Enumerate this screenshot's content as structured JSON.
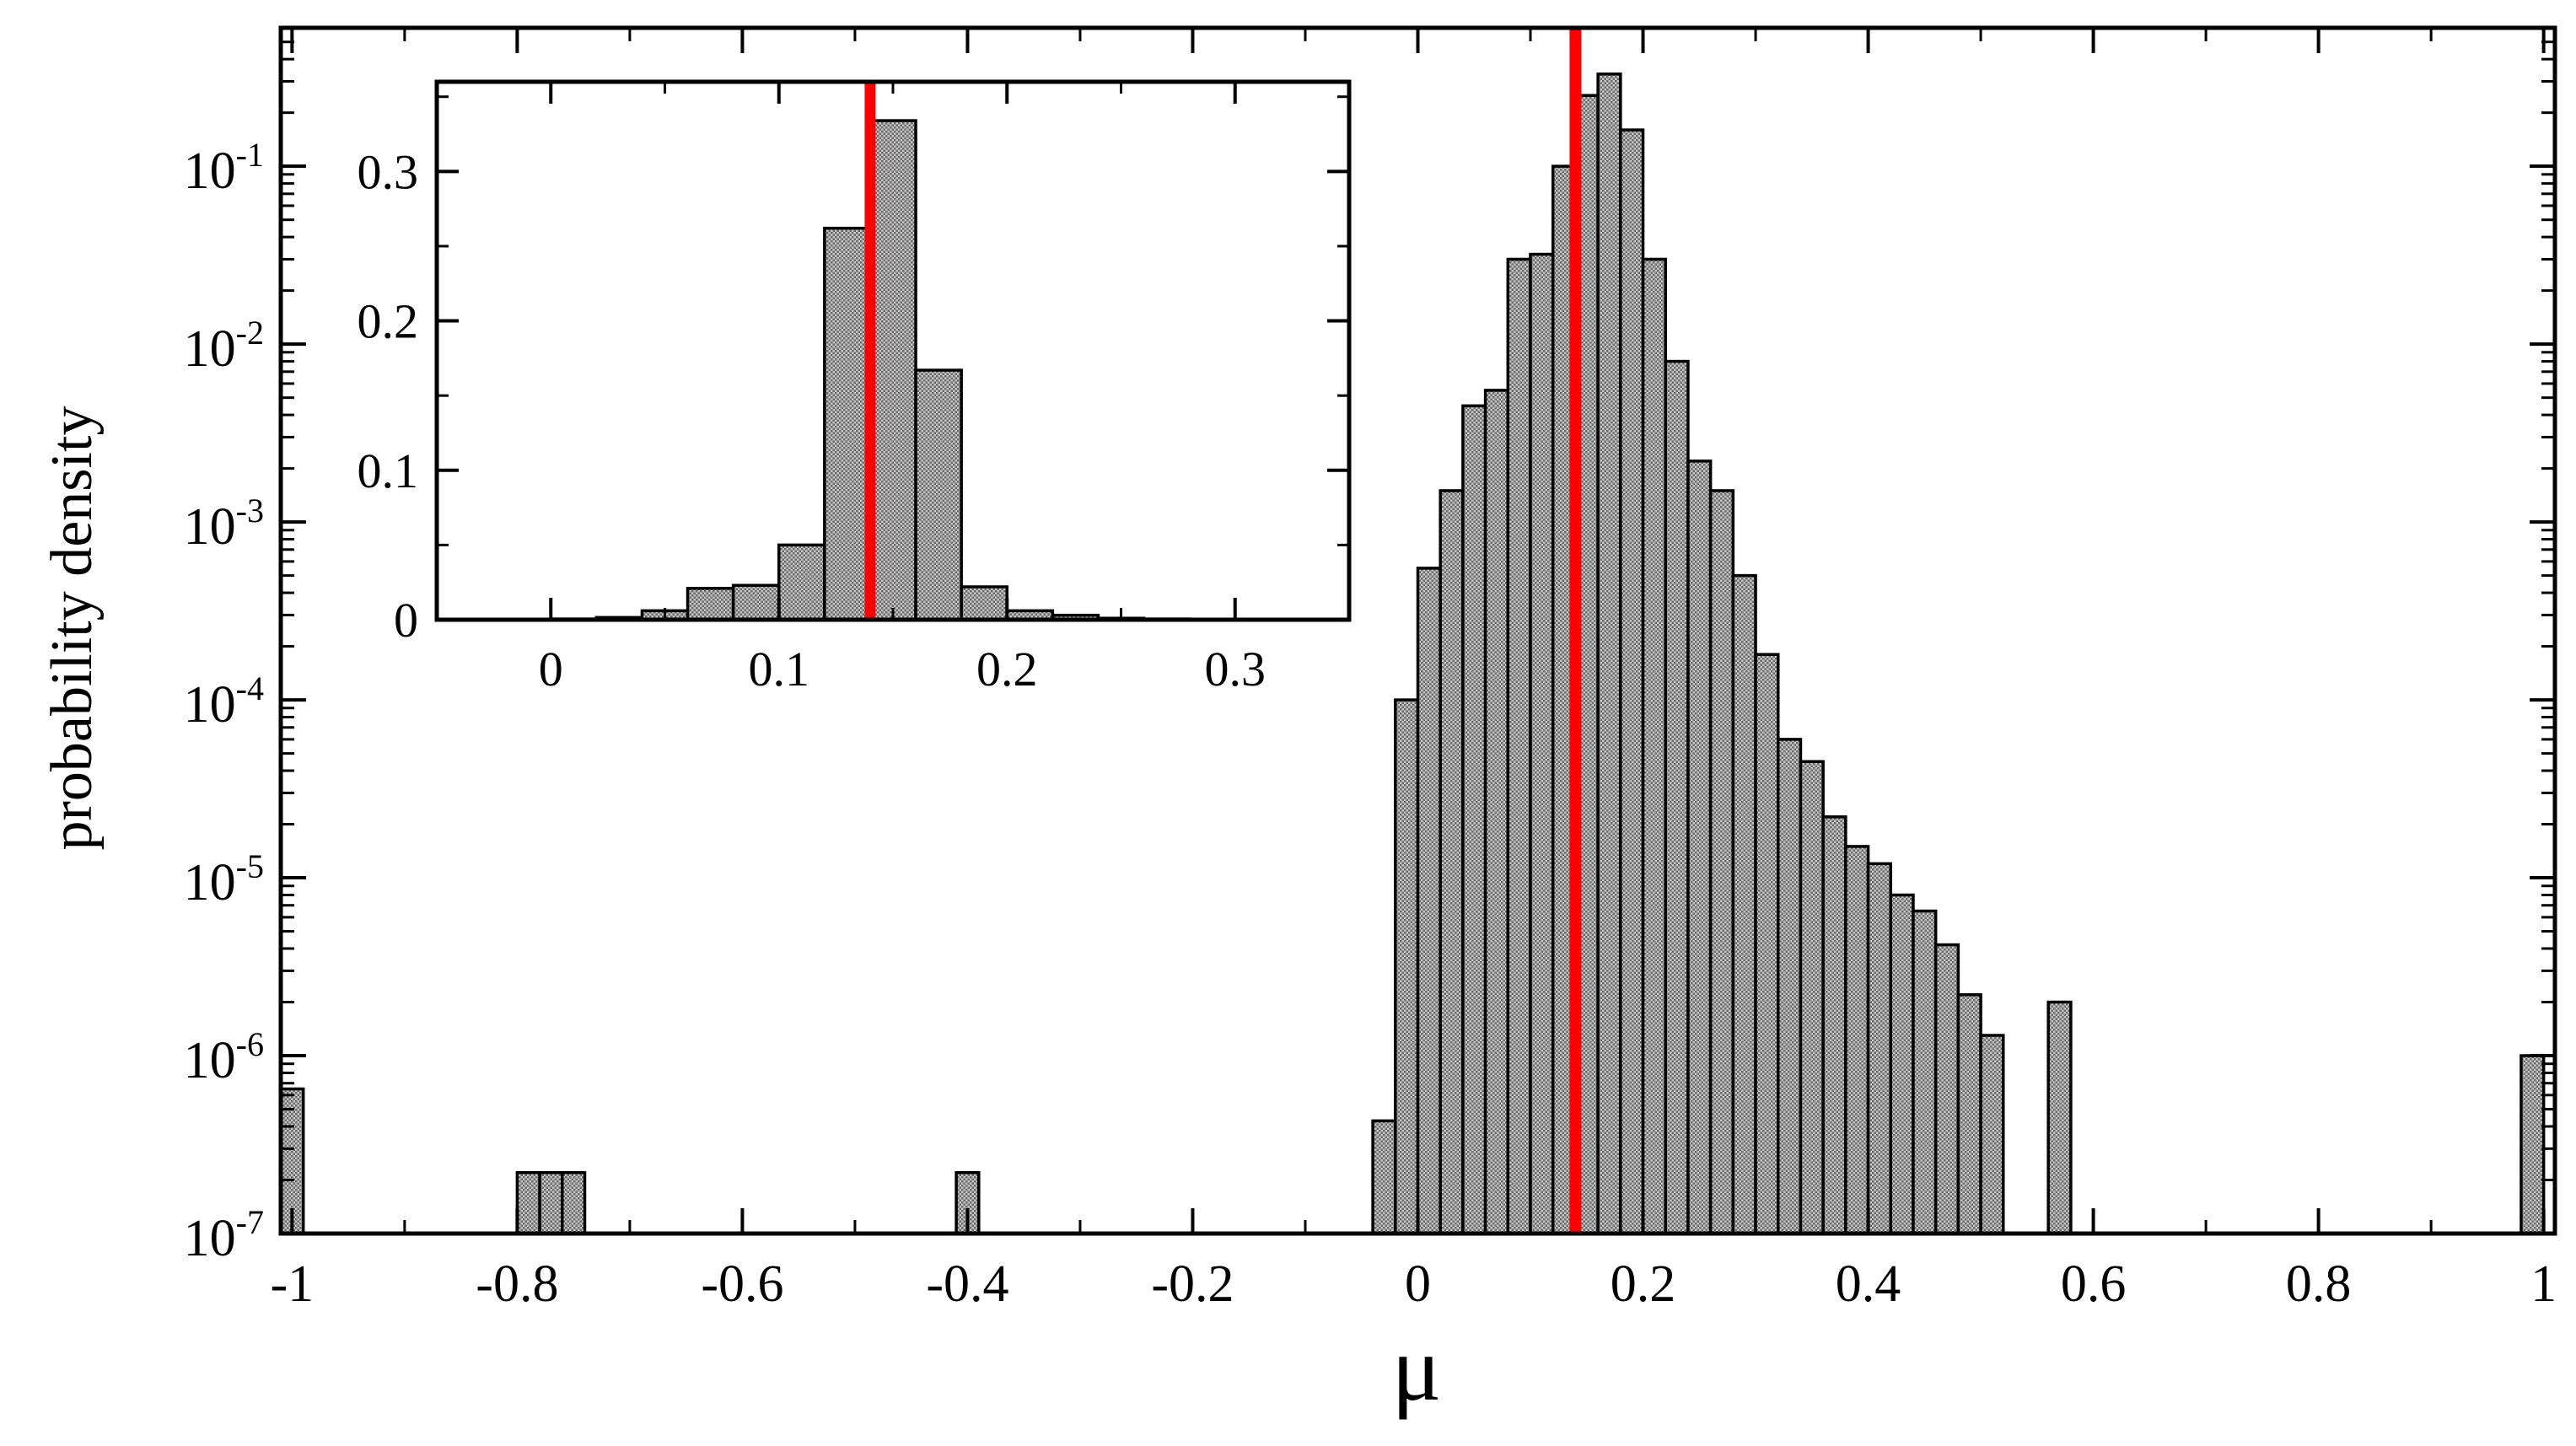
{
  "chart_data": [
    {
      "type": "bar",
      "panel": "main",
      "title": "",
      "xlabel": "μ",
      "ylabel": "probability density",
      "xlim": [
        -1.01,
        1.01
      ],
      "ylim": [
        1e-07,
        0.6
      ],
      "yscale": "log",
      "grid": false,
      "legend": "none",
      "x_ticks": [
        "-1",
        "-0.8",
        "-0.6",
        "-0.4",
        "-0.2",
        "0",
        "0.2",
        "0.4",
        "0.6",
        "0.8",
        "1"
      ],
      "y_ticks": [
        {
          "base": "10",
          "exp": "-7"
        },
        {
          "base": "10",
          "exp": "-6"
        },
        {
          "base": "10",
          "exp": "-5"
        },
        {
          "base": "10",
          "exp": "-4"
        },
        {
          "base": "10",
          "exp": "-3"
        },
        {
          "base": "10",
          "exp": "-2"
        },
        {
          "base": "10",
          "exp": "-1"
        }
      ],
      "bin_width": 0.02,
      "bin_centers": [
        -1.0,
        -0.79,
        -0.77,
        -0.75,
        -0.4,
        -0.03,
        -0.01,
        0.01,
        0.03,
        0.05,
        0.07,
        0.09,
        0.11,
        0.13,
        0.15,
        0.17,
        0.19,
        0.21,
        0.23,
        0.25,
        0.27,
        0.29,
        0.31,
        0.33,
        0.35,
        0.37,
        0.39,
        0.41,
        0.43,
        0.45,
        0.47,
        0.49,
        0.51,
        0.57,
        0.99
      ],
      "values": [
        6.5e-07,
        2.2e-07,
        2.2e-07,
        2.2e-07,
        2.2e-07,
        4.3e-07,
        0.0001,
        0.00055,
        0.0015,
        0.0045,
        0.0055,
        0.03,
        0.032,
        0.1,
        0.25,
        0.33,
        0.16,
        0.03,
        0.008,
        0.0022,
        0.0015,
        0.0005,
        0.00018,
        6e-05,
        4.5e-05,
        2.2e-05,
        1.5e-05,
        1.2e-05,
        8e-06,
        6.5e-06,
        4.2e-06,
        2.2e-06,
        1.3e-06,
        2e-06,
        1e-06
      ],
      "reference_line": {
        "x": 0.14,
        "color": "#ff0000"
      },
      "bar_color": "#b8b8b8",
      "bar_edge_color": "#000000"
    },
    {
      "type": "bar",
      "panel": "inset",
      "title": "",
      "xlabel": "",
      "ylabel": "",
      "xlim": [
        -0.05,
        0.35
      ],
      "ylim": [
        0,
        0.36
      ],
      "yscale": "linear",
      "grid": false,
      "legend": "none",
      "x_ticks": [
        "0",
        "0.1",
        "0.2",
        "0.3"
      ],
      "y_ticks": [
        "0",
        "0.1",
        "0.2",
        "0.3"
      ],
      "bin_width": 0.02,
      "bin_centers": [
        0.01,
        0.03,
        0.05,
        0.07,
        0.09,
        0.11,
        0.13,
        0.15,
        0.17,
        0.19,
        0.21,
        0.23,
        0.25,
        0.27
      ],
      "values": [
        0.0005,
        0.0015,
        0.006,
        0.021,
        0.023,
        0.05,
        0.262,
        0.334,
        0.167,
        0.022,
        0.006,
        0.003,
        0.001,
        0.0005
      ],
      "reference_line": {
        "x": 0.14,
        "color": "#ff0000"
      },
      "bar_color": "#b8b8b8",
      "bar_edge_color": "#000000"
    }
  ]
}
